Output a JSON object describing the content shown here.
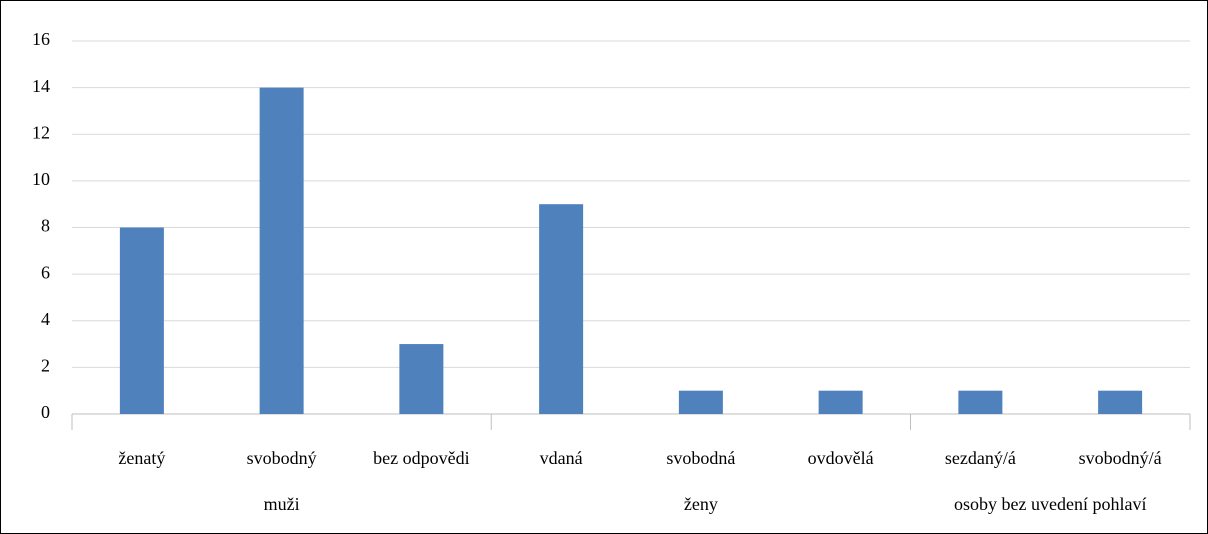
{
  "chart_data": {
    "type": "bar",
    "color": "#4f81bd",
    "groups": [
      {
        "name": "muži",
        "categories": [
          "ženatý",
          "svobodný",
          "bez odpovědi"
        ],
        "values": [
          8,
          14,
          3
        ]
      },
      {
        "name": "ženy",
        "categories": [
          "vdaná",
          "svobodná",
          "ovdovělá"
        ],
        "values": [
          9,
          1,
          1
        ]
      },
      {
        "name": "osoby bez uvedení pohlaví",
        "categories": [
          "sezdaný/á",
          "svobodný/á"
        ],
        "values": [
          1,
          1
        ]
      }
    ],
    "ylim": [
      0,
      16
    ],
    "yticks": [
      0,
      2,
      4,
      6,
      8,
      10,
      12,
      14,
      16
    ],
    "grid": true
  }
}
